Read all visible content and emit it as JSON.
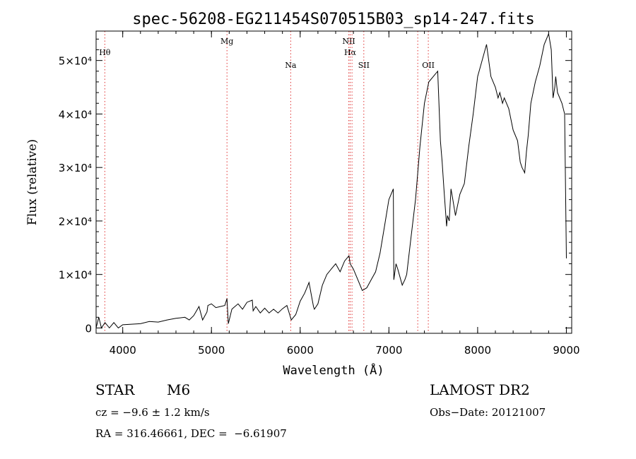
{
  "chart_data": {
    "type": "line",
    "title": "spec-56208-EG211454S070515B03_sp14-247.fits",
    "xlabel": "Wavelength (Å)",
    "ylabel": "Flux (relative)",
    "xlim": [
      3700,
      9060
    ],
    "ylim": [
      -1000,
      55500
    ],
    "x_ticks": [
      4000,
      5000,
      6000,
      7000,
      8000,
      9000
    ],
    "y_ticks": [
      {
        "value": 0,
        "label": "0"
      },
      {
        "value": 10000,
        "label": "1×10⁴"
      },
      {
        "value": 20000,
        "label": "2×10⁴"
      },
      {
        "value": 30000,
        "label": "3×10⁴"
      },
      {
        "value": 40000,
        "label": "4×10⁴"
      },
      {
        "value": 50000,
        "label": "5×10⁴"
      }
    ],
    "line_markers": [
      {
        "label": "Hθ",
        "x": 3798,
        "level": 1
      },
      {
        "label": "Mg",
        "x": 5175,
        "level": 0
      },
      {
        "label": "Na",
        "x": 5893,
        "level": 2
      },
      {
        "label": "NII",
        "x": 6548,
        "level": 0
      },
      {
        "label": "Hα",
        "x": 6563,
        "level": 1
      },
      {
        "label": "NII",
        "x": 6584,
        "level": -1
      },
      {
        "label": "SII",
        "x": 6717,
        "level": 2
      },
      {
        "label": "OII",
        "x": 7325,
        "level": -1
      },
      {
        "label": "OII",
        "x": 7444,
        "level": 2
      }
    ],
    "series": [
      {
        "color": "#000000",
        "x": [
          3700,
          3730,
          3760,
          3800,
          3850,
          3900,
          3950,
          4000,
          4100,
          4200,
          4300,
          4400,
          4500,
          4600,
          4700,
          4750,
          4800,
          4860,
          4900,
          4950,
          4960,
          5000,
          5050,
          5100,
          5150,
          5175,
          5190,
          5230,
          5250,
          5300,
          5350,
          5400,
          5460,
          5470,
          5500,
          5550,
          5600,
          5650,
          5700,
          5750,
          5800,
          5850,
          5900,
          5950,
          6000,
          6050,
          6100,
          6150,
          6160,
          6200,
          6250,
          6300,
          6350,
          6400,
          6450,
          6500,
          6550,
          6563,
          6600,
          6650,
          6700,
          6750,
          6800,
          6850,
          6900,
          6950,
          7000,
          7050,
          7055,
          7080,
          7100,
          7150,
          7180,
          7200,
          7250,
          7300,
          7350,
          7400,
          7450,
          7500,
          7550,
          7580,
          7600,
          7620,
          7650,
          7660,
          7680,
          7700,
          7720,
          7750,
          7800,
          7850,
          7900,
          7950,
          8000,
          8050,
          8100,
          8150,
          8200,
          8230,
          8250,
          8280,
          8300,
          8350,
          8400,
          8450,
          8480,
          8500,
          8530,
          8550,
          8570,
          8600,
          8650,
          8700,
          8750,
          8800,
          8830,
          8850,
          8870,
          8880,
          8900,
          8950,
          8980,
          9000
        ],
        "y": [
          0,
          2000,
          0,
          1000,
          0,
          1000,
          0,
          600,
          700,
          800,
          1200,
          1100,
          1500,
          1800,
          2000,
          1500,
          2300,
          4000,
          1500,
          3000,
          4200,
          4500,
          3800,
          4000,
          4200,
          5500,
          800,
          3500,
          3800,
          4500,
          3500,
          4800,
          5200,
          3200,
          4000,
          2800,
          3700,
          2800,
          3500,
          2800,
          3600,
          4200,
          1500,
          2500,
          5000,
          6500,
          8500,
          4000,
          3500,
          4500,
          8000,
          10000,
          11000,
          12000,
          10500,
          12500,
          13500,
          12000,
          11000,
          9000,
          7000,
          7500,
          9000,
          10500,
          14000,
          19000,
          24000,
          26000,
          9000,
          12000,
          11000,
          8000,
          9000,
          10000,
          17000,
          24000,
          34000,
          42000,
          46000,
          47000,
          48000,
          35000,
          31000,
          26000,
          19000,
          21000,
          20000,
          26000,
          24000,
          21000,
          25000,
          27000,
          34000,
          40000,
          47000,
          50000,
          53000,
          47000,
          45000,
          43000,
          44000,
          42000,
          43000,
          41000,
          37000,
          35000,
          31000,
          30000,
          29000,
          33000,
          36000,
          42000,
          46000,
          49000,
          53000,
          55000,
          52000,
          43000,
          45000,
          47000,
          44000,
          42000,
          40000,
          13000
        ]
      }
    ]
  },
  "info": {
    "object_class": "STAR",
    "subclass": "M6",
    "survey": "LAMOST DR2",
    "velocity": "cz = −9.6 ± 1.2 km/s",
    "obs_date": "Obs−Date: 20121007",
    "coords": "RA = 316.46661, DEC =  −6.61907"
  }
}
